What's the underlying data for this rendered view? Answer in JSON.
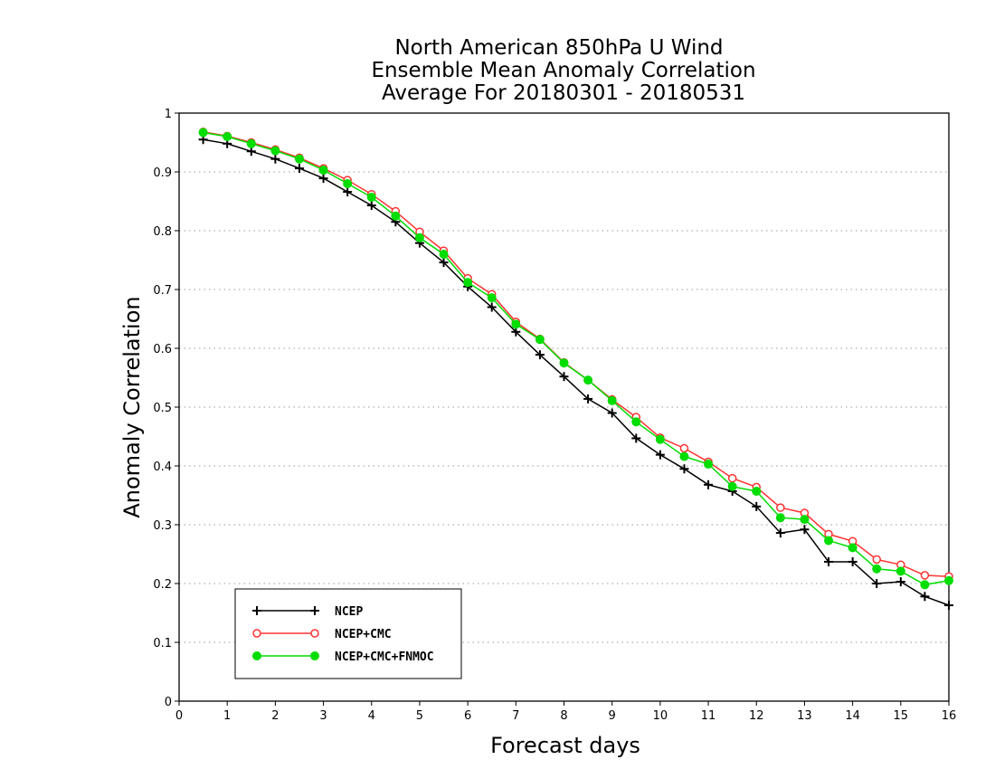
{
  "chart_data": {
    "type": "line",
    "title_lines": [
      "North American 850hPa U Wind",
      "Ensemble Mean Anomaly Correlation",
      "Average For 20180301 - 20180531"
    ],
    "xlabel": "Forecast days",
    "ylabel": "Anomaly Correlation",
    "xlim": [
      0,
      16
    ],
    "ylim": [
      0,
      1
    ],
    "xticks": [
      "0",
      "1",
      "2",
      "3",
      "4",
      "5",
      "6",
      "7",
      "8",
      "9",
      "10",
      "11",
      "12",
      "13",
      "14",
      "15",
      "16"
    ],
    "yticks": [
      "0",
      "0.1",
      "0.2",
      "0.3",
      "0.4",
      "0.5",
      "0.6",
      "0.7",
      "0.8",
      "0.9",
      "1"
    ],
    "grid": "horizontal-dotted",
    "legend_position": "bottom-left",
    "x": [
      0.5,
      1,
      1.5,
      2,
      2.5,
      3,
      3.5,
      4,
      4.5,
      5,
      5.5,
      6,
      6.5,
      7,
      7.5,
      8,
      8.5,
      9,
      9.5,
      10,
      10.5,
      11,
      11.5,
      12,
      12.5,
      13,
      13.5,
      14,
      14.5,
      15,
      15.5,
      16
    ],
    "series": [
      {
        "name": "NCEP",
        "color": "#000000",
        "marker": "plus",
        "values": [
          0.955,
          0.948,
          0.935,
          0.922,
          0.906,
          0.889,
          0.866,
          0.843,
          0.815,
          0.779,
          0.746,
          0.705,
          0.67,
          0.628,
          0.589,
          0.552,
          0.514,
          0.49,
          0.447,
          0.419,
          0.395,
          0.368,
          0.357,
          0.331,
          0.286,
          0.292,
          0.237,
          0.237,
          0.2,
          0.203,
          0.178,
          0.163
        ]
      },
      {
        "name": "NCEP+CMC",
        "color": "#ff3333",
        "marker": "open-circle",
        "values": [
          0.968,
          0.961,
          0.95,
          0.938,
          0.924,
          0.906,
          0.886,
          0.862,
          0.833,
          0.798,
          0.766,
          0.719,
          0.692,
          0.645,
          0.616,
          0.576,
          0.546,
          0.513,
          0.483,
          0.448,
          0.43,
          0.407,
          0.379,
          0.364,
          0.329,
          0.32,
          0.284,
          0.272,
          0.241,
          0.232,
          0.214,
          0.212
        ]
      },
      {
        "name": "NCEP+CMC+FNMOC",
        "color": "#00dd00",
        "marker": "filled-circle",
        "values": [
          0.967,
          0.96,
          0.948,
          0.936,
          0.922,
          0.903,
          0.88,
          0.857,
          0.825,
          0.788,
          0.76,
          0.712,
          0.686,
          0.641,
          0.615,
          0.575,
          0.546,
          0.511,
          0.475,
          0.445,
          0.416,
          0.403,
          0.365,
          0.357,
          0.312,
          0.309,
          0.273,
          0.261,
          0.225,
          0.221,
          0.198,
          0.205
        ]
      }
    ]
  }
}
